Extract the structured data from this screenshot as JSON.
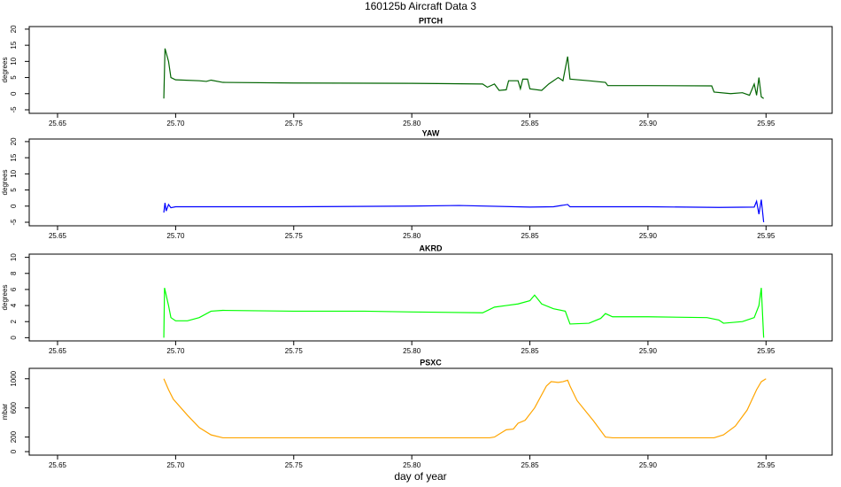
{
  "title": "160125b   Aircraft Data 3",
  "x_label": "day of year",
  "chart_data": [
    {
      "type": "line",
      "title": "PITCH",
      "y_label": "degrees",
      "xlim": [
        25.638,
        25.978
      ],
      "ylim": [
        -6.1,
        20.8
      ],
      "xticks": [
        {
          "value": 25.65,
          "label": "25.65"
        },
        {
          "value": 25.7,
          "label": "25.70"
        },
        {
          "value": 25.75,
          "label": "25.75"
        },
        {
          "value": 25.8,
          "label": "25.80"
        },
        {
          "value": 25.85,
          "label": "25.85"
        },
        {
          "value": 25.9,
          "label": "25.90"
        },
        {
          "value": 25.95,
          "label": "25.95"
        }
      ],
      "yticks": [
        -5,
        0,
        5,
        10,
        15,
        20
      ],
      "x": [
        25.695,
        25.6955,
        25.697,
        25.698,
        25.7,
        25.71,
        25.713,
        25.715,
        25.72,
        25.75,
        25.8,
        25.83,
        25.832,
        25.835,
        25.837,
        25.84,
        25.841,
        25.845,
        25.846,
        25.847,
        25.849,
        25.85,
        25.855,
        25.858,
        25.862,
        25.864,
        25.866,
        25.867,
        25.875,
        25.882,
        25.883,
        25.9,
        25.927,
        25.928,
        25.935,
        25.94,
        25.943,
        25.945,
        25.946,
        25.947,
        25.948,
        25.949
      ],
      "series": [
        {
          "color": "#006400",
          "values": [
            -1.5,
            14,
            10,
            5,
            4.3,
            4,
            3.8,
            4.2,
            3.5,
            3.3,
            3.2,
            3,
            2,
            3,
            1,
            1.2,
            4,
            4,
            1.5,
            4.5,
            4.5,
            1.5,
            1,
            3,
            5,
            4,
            11.5,
            4.5,
            4,
            3.5,
            2.5,
            2.5,
            2.4,
            0.5,
            0,
            0.3,
            -0.5,
            3,
            -0.5,
            5,
            -1,
            -1.5
          ]
        }
      ]
    },
    {
      "type": "line",
      "title": "YAW",
      "y_label": "degrees",
      "xlim": [
        25.638,
        25.978
      ],
      "ylim": [
        -6.1,
        20.8
      ],
      "xticks": [
        {
          "value": 25.65,
          "label": "25.65"
        },
        {
          "value": 25.7,
          "label": "25.70"
        },
        {
          "value": 25.75,
          "label": "25.75"
        },
        {
          "value": 25.8,
          "label": "25.80"
        },
        {
          "value": 25.85,
          "label": "25.85"
        },
        {
          "value": 25.9,
          "label": "25.90"
        },
        {
          "value": 25.95,
          "label": "25.95"
        }
      ],
      "yticks": [
        -5,
        0,
        5,
        10,
        15,
        20
      ],
      "x": [
        25.695,
        25.6955,
        25.696,
        25.697,
        25.698,
        25.7,
        25.75,
        25.8,
        25.82,
        25.85,
        25.86,
        25.866,
        25.867,
        25.9,
        25.93,
        25.945,
        25.946,
        25.947,
        25.948,
        25.949
      ],
      "series": [
        {
          "color": "#0000ff",
          "values": [
            -2,
            1,
            -1.5,
            0.5,
            -0.5,
            -0.2,
            -0.2,
            0,
            0.2,
            -0.3,
            -0.2,
            0.5,
            -0.2,
            -0.2,
            -0.4,
            -0.3,
            1.5,
            -2.5,
            2,
            -5
          ]
        }
      ]
    },
    {
      "type": "line",
      "title": "AKRD",
      "y_label": "degrees",
      "xlim": [
        25.638,
        25.978
      ],
      "ylim": [
        -0.4,
        10.4
      ],
      "xticks": [
        {
          "value": 25.65,
          "label": "25.65"
        },
        {
          "value": 25.7,
          "label": "25.70"
        },
        {
          "value": 25.75,
          "label": "25.75"
        },
        {
          "value": 25.8,
          "label": "25.80"
        },
        {
          "value": 25.85,
          "label": "25.85"
        },
        {
          "value": 25.9,
          "label": "25.90"
        },
        {
          "value": 25.95,
          "label": "25.95"
        }
      ],
      "yticks": [
        0,
        2,
        4,
        6,
        8,
        10
      ],
      "x": [
        25.695,
        25.6953,
        25.697,
        25.698,
        25.7,
        25.705,
        25.71,
        25.715,
        25.72,
        25.75,
        25.78,
        25.8,
        25.83,
        25.835,
        25.84,
        25.845,
        25.85,
        25.852,
        25.855,
        25.86,
        25.865,
        25.866,
        25.867,
        25.875,
        25.88,
        25.882,
        25.885,
        25.9,
        25.925,
        25.93,
        25.932,
        25.94,
        25.945,
        25.947,
        25.948,
        25.949
      ],
      "series": [
        {
          "color": "#00ff00",
          "values": [
            0,
            6.2,
            4,
            2.5,
            2.1,
            2.1,
            2.5,
            3.3,
            3.4,
            3.3,
            3.3,
            3.2,
            3.1,
            3.8,
            4,
            4.2,
            4.6,
            5.3,
            4.2,
            3.6,
            3.3,
            2.5,
            1.7,
            1.8,
            2.4,
            3,
            2.6,
            2.6,
            2.5,
            2.2,
            1.8,
            2,
            2.5,
            4,
            6.2,
            0
          ]
        }
      ]
    },
    {
      "type": "line",
      "title": "PSXC",
      "y_label": "mbar",
      "xlim": [
        25.638,
        25.978
      ],
      "ylim": [
        -48,
        1143
      ],
      "xticks": [
        {
          "value": 25.65,
          "label": "25.65"
        },
        {
          "value": 25.7,
          "label": "25.70"
        },
        {
          "value": 25.75,
          "label": "25.75"
        },
        {
          "value": 25.8,
          "label": "25.80"
        },
        {
          "value": 25.85,
          "label": "25.85"
        },
        {
          "value": 25.9,
          "label": "25.90"
        },
        {
          "value": 25.95,
          "label": "25.95"
        }
      ],
      "yticks": [
        0,
        200,
        600,
        1000
      ],
      "x": [
        25.695,
        25.697,
        25.699,
        25.705,
        25.71,
        25.715,
        25.72,
        25.75,
        25.8,
        25.833,
        25.835,
        25.838,
        25.84,
        25.843,
        25.845,
        25.848,
        25.852,
        25.857,
        25.859,
        25.862,
        25.864,
        25.866,
        25.867,
        25.87,
        25.877,
        25.882,
        25.885,
        25.9,
        25.928,
        25.932,
        25.937,
        25.942,
        25.946,
        25.948,
        25.95
      ],
      "series": [
        {
          "color": "#ffa500",
          "values": [
            1000,
            850,
            720,
            500,
            330,
            230,
            190,
            190,
            190,
            190,
            200,
            260,
            300,
            310,
            390,
            430,
            600,
            900,
            960,
            950,
            960,
            980,
            900,
            700,
            420,
            200,
            190,
            190,
            190,
            230,
            350,
            570,
            850,
            960,
            1000
          ]
        }
      ]
    }
  ]
}
